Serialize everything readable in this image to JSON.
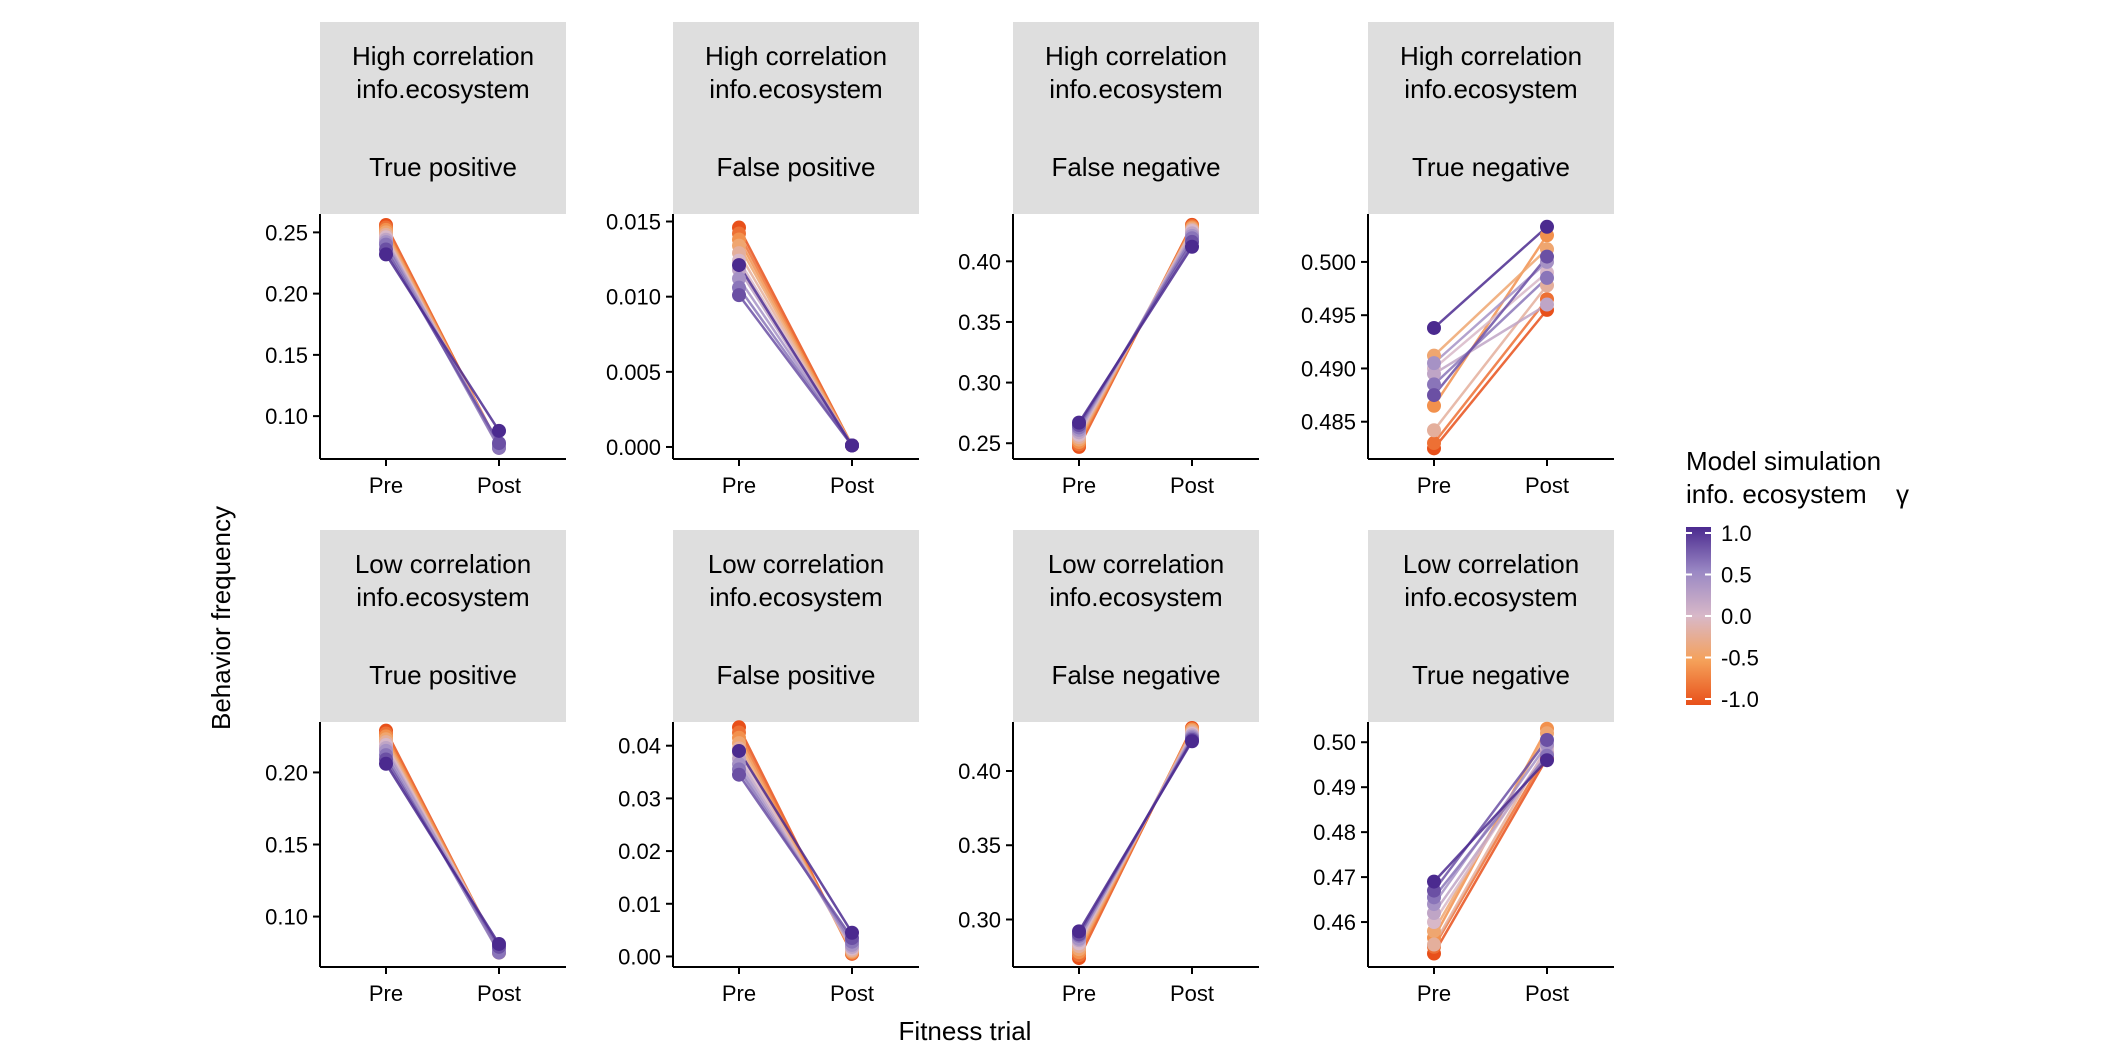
{
  "figure": {
    "ylabel": "Behavior frequency",
    "xlabel": "Fitness trial",
    "legend": {
      "title_line1": "Model simulation",
      "title_line2": "info. ecosystem",
      "title_symbol": "γ",
      "tick_labels": [
        "1.0",
        "0.5",
        "0.0",
        "-0.5",
        "-1.0"
      ],
      "placement": "right"
    }
  },
  "colors": {
    "gamma_low": "#e8501a",
    "gamma_midlow": "#f5a15a",
    "gamma_mid": "#d8b8c8",
    "gamma_midhigh": "#9a88c4",
    "gamma_high": "#4b2a8f",
    "strip_bg": "#dedede"
  },
  "chart_data": [
    {
      "type": "line",
      "strip": [
        "High correlation",
        "info.ecosystem",
        "True positive"
      ],
      "x": [
        "Pre",
        "Post"
      ],
      "ylim": [
        0.065,
        0.265
      ],
      "yticks": [
        0.1,
        0.15,
        0.2,
        0.25
      ],
      "ytick_labels": [
        "0.10",
        "0.15",
        "0.20",
        "0.25"
      ],
      "series": [
        {
          "gamma": -1.0,
          "values": [
            0.256,
            0.075
          ]
        },
        {
          "gamma": -0.8,
          "values": [
            0.254,
            0.076
          ]
        },
        {
          "gamma": -0.6,
          "values": [
            0.252,
            0.075
          ]
        },
        {
          "gamma": -0.4,
          "values": [
            0.25,
            0.076
          ]
        },
        {
          "gamma": -0.2,
          "values": [
            0.248,
            0.074
          ]
        },
        {
          "gamma": 0.0,
          "values": [
            0.246,
            0.076
          ]
        },
        {
          "gamma": 0.2,
          "values": [
            0.244,
            0.075
          ]
        },
        {
          "gamma": 0.4,
          "values": [
            0.242,
            0.077
          ]
        },
        {
          "gamma": 0.6,
          "values": [
            0.24,
            0.074
          ]
        },
        {
          "gamma": 0.8,
          "values": [
            0.236,
            0.078
          ]
        },
        {
          "gamma": 1.0,
          "values": [
            0.232,
            0.088
          ]
        }
      ]
    },
    {
      "type": "line",
      "strip": [
        "High correlation",
        "info.ecosystem",
        "False positive"
      ],
      "x": [
        "Pre",
        "Post"
      ],
      "ylim": [
        -0.0008,
        0.0155
      ],
      "yticks": [
        0.0,
        0.005,
        0.01,
        0.015
      ],
      "ytick_labels": [
        "0.000",
        "0.005",
        "0.010",
        "0.015"
      ],
      "series": [
        {
          "gamma": -1.0,
          "values": [
            0.0146,
            0.0001
          ]
        },
        {
          "gamma": -0.8,
          "values": [
            0.0142,
            0.0001
          ]
        },
        {
          "gamma": -0.6,
          "values": [
            0.0138,
            0.0001
          ]
        },
        {
          "gamma": -0.4,
          "values": [
            0.0134,
            0.0001
          ]
        },
        {
          "gamma": -0.2,
          "values": [
            0.0129,
            0.0001
          ]
        },
        {
          "gamma": 0.0,
          "values": [
            0.0124,
            0.0001
          ]
        },
        {
          "gamma": 0.2,
          "values": [
            0.0118,
            0.0001
          ]
        },
        {
          "gamma": 0.4,
          "values": [
            0.0112,
            0.0001
          ]
        },
        {
          "gamma": 0.6,
          "values": [
            0.0106,
            0.0001
          ]
        },
        {
          "gamma": 0.8,
          "values": [
            0.0101,
            0.0001
          ]
        },
        {
          "gamma": 1.0,
          "values": [
            0.0121,
            0.0001
          ]
        }
      ]
    },
    {
      "type": "line",
      "strip": [
        "High correlation",
        "info.ecosystem",
        "False negative"
      ],
      "x": [
        "Pre",
        "Post"
      ],
      "ylim": [
        0.237,
        0.439
      ],
      "yticks": [
        0.25,
        0.3,
        0.35,
        0.4
      ],
      "ytick_labels": [
        "0.25",
        "0.30",
        "0.35",
        "0.40"
      ],
      "series": [
        {
          "gamma": -1.0,
          "values": [
            0.247,
            0.43
          ]
        },
        {
          "gamma": -0.8,
          "values": [
            0.249,
            0.429
          ]
        },
        {
          "gamma": -0.6,
          "values": [
            0.251,
            0.428
          ]
        },
        {
          "gamma": -0.4,
          "values": [
            0.253,
            0.427
          ]
        },
        {
          "gamma": -0.2,
          "values": [
            0.255,
            0.426
          ]
        },
        {
          "gamma": 0.0,
          "values": [
            0.257,
            0.425
          ]
        },
        {
          "gamma": 0.2,
          "values": [
            0.259,
            0.423
          ]
        },
        {
          "gamma": 0.4,
          "values": [
            0.261,
            0.421
          ]
        },
        {
          "gamma": 0.6,
          "values": [
            0.263,
            0.419
          ]
        },
        {
          "gamma": 0.8,
          "values": [
            0.265,
            0.416
          ]
        },
        {
          "gamma": 1.0,
          "values": [
            0.267,
            0.412
          ]
        }
      ]
    },
    {
      "type": "line",
      "strip": [
        "High correlation",
        "info.ecosystem",
        "True negative"
      ],
      "x": [
        "Pre",
        "Post"
      ],
      "ylim": [
        0.4815,
        0.5045
      ],
      "yticks": [
        0.485,
        0.49,
        0.495,
        0.5
      ],
      "ytick_labels": [
        "0.485",
        "0.490",
        "0.495",
        "0.500"
      ],
      "series": [
        {
          "gamma": -1.0,
          "values": [
            0.4825,
            0.4955
          ]
        },
        {
          "gamma": -0.8,
          "values": [
            0.483,
            0.4965
          ]
        },
        {
          "gamma": -0.6,
          "values": [
            0.4865,
            0.5025
          ]
        },
        {
          "gamma": -0.4,
          "values": [
            0.4912,
            0.5012
          ]
        },
        {
          "gamma": -0.2,
          "values": [
            0.4842,
            0.4978
          ]
        },
        {
          "gamma": 0.0,
          "values": [
            0.49,
            0.499
          ]
        },
        {
          "gamma": 0.2,
          "values": [
            0.4895,
            0.496
          ]
        },
        {
          "gamma": 0.4,
          "values": [
            0.4905,
            0.5
          ]
        },
        {
          "gamma": 0.6,
          "values": [
            0.4885,
            0.4985
          ]
        },
        {
          "gamma": 0.8,
          "values": [
            0.4875,
            0.5005
          ]
        },
        {
          "gamma": 1.0,
          "values": [
            0.4938,
            0.5033
          ]
        }
      ]
    },
    {
      "type": "line",
      "strip": [
        "Low correlation",
        "info.ecosystem",
        "True positive"
      ],
      "x": [
        "Pre",
        "Post"
      ],
      "ylim": [
        0.065,
        0.235
      ],
      "yticks": [
        0.1,
        0.15,
        0.2
      ],
      "ytick_labels": [
        "0.10",
        "0.15",
        "0.20"
      ],
      "series": [
        {
          "gamma": -1.0,
          "values": [
            0.229,
            0.076
          ]
        },
        {
          "gamma": -0.8,
          "values": [
            0.227,
            0.075
          ]
        },
        {
          "gamma": -0.6,
          "values": [
            0.225,
            0.077
          ]
        },
        {
          "gamma": -0.4,
          "values": [
            0.223,
            0.076
          ]
        },
        {
          "gamma": -0.2,
          "values": [
            0.221,
            0.075
          ]
        },
        {
          "gamma": 0.0,
          "values": [
            0.219,
            0.078
          ]
        },
        {
          "gamma": 0.2,
          "values": [
            0.217,
            0.076
          ]
        },
        {
          "gamma": 0.4,
          "values": [
            0.215,
            0.077
          ]
        },
        {
          "gamma": 0.6,
          "values": [
            0.212,
            0.075
          ]
        },
        {
          "gamma": 0.8,
          "values": [
            0.209,
            0.079
          ]
        },
        {
          "gamma": 1.0,
          "values": [
            0.206,
            0.081
          ]
        }
      ]
    },
    {
      "type": "line",
      "strip": [
        "Low correlation",
        "info.ecosystem",
        "False positive"
      ],
      "x": [
        "Pre",
        "Post"
      ],
      "ylim": [
        -0.002,
        0.0445
      ],
      "yticks": [
        0.0,
        0.01,
        0.02,
        0.03,
        0.04
      ],
      "ytick_labels": [
        "0.00",
        "0.01",
        "0.02",
        "0.03",
        "0.04"
      ],
      "series": [
        {
          "gamma": -1.0,
          "values": [
            0.0435,
            0.0005
          ]
        },
        {
          "gamma": -0.8,
          "values": [
            0.0425,
            0.0006
          ]
        },
        {
          "gamma": -0.6,
          "values": [
            0.0415,
            0.0008
          ]
        },
        {
          "gamma": -0.4,
          "values": [
            0.0405,
            0.001
          ]
        },
        {
          "gamma": -0.2,
          "values": [
            0.0395,
            0.0012
          ]
        },
        {
          "gamma": 0.0,
          "values": [
            0.0385,
            0.0015
          ]
        },
        {
          "gamma": 0.2,
          "values": [
            0.0375,
            0.0018
          ]
        },
        {
          "gamma": 0.4,
          "values": [
            0.0365,
            0.0022
          ]
        },
        {
          "gamma": 0.6,
          "values": [
            0.0355,
            0.0028
          ]
        },
        {
          "gamma": 0.8,
          "values": [
            0.0345,
            0.0035
          ]
        },
        {
          "gamma": 1.0,
          "values": [
            0.039,
            0.0045
          ]
        }
      ]
    },
    {
      "type": "line",
      "strip": [
        "Low correlation",
        "info.ecosystem",
        "False negative"
      ],
      "x": [
        "Pre",
        "Post"
      ],
      "ylim": [
        0.268,
        0.433
      ],
      "yticks": [
        0.3,
        0.35,
        0.4
      ],
      "ytick_labels": [
        "0.30",
        "0.35",
        "0.40"
      ],
      "series": [
        {
          "gamma": -1.0,
          "values": [
            0.274,
            0.429
          ]
        },
        {
          "gamma": -0.8,
          "values": [
            0.276,
            0.428
          ]
        },
        {
          "gamma": -0.6,
          "values": [
            0.278,
            0.428
          ]
        },
        {
          "gamma": -0.4,
          "values": [
            0.28,
            0.427
          ]
        },
        {
          "gamma": -0.2,
          "values": [
            0.282,
            0.426
          ]
        },
        {
          "gamma": 0.0,
          "values": [
            0.284,
            0.425
          ]
        },
        {
          "gamma": 0.2,
          "values": [
            0.286,
            0.424
          ]
        },
        {
          "gamma": 0.4,
          "values": [
            0.287,
            0.423
          ]
        },
        {
          "gamma": 0.6,
          "values": [
            0.289,
            0.422
          ]
        },
        {
          "gamma": 0.8,
          "values": [
            0.29,
            0.421
          ]
        },
        {
          "gamma": 1.0,
          "values": [
            0.292,
            0.42
          ]
        }
      ]
    },
    {
      "type": "line",
      "strip": [
        "Low correlation",
        "info.ecosystem",
        "True negative"
      ],
      "x": [
        "Pre",
        "Post"
      ],
      "ylim": [
        0.45,
        0.5045
      ],
      "yticks": [
        0.46,
        0.47,
        0.48,
        0.49,
        0.5
      ],
      "ytick_labels": [
        "0.46",
        "0.47",
        "0.48",
        "0.49",
        "0.50"
      ],
      "series": [
        {
          "gamma": -1.0,
          "values": [
            0.453,
            0.4965
          ]
        },
        {
          "gamma": -0.8,
          "values": [
            0.4545,
            0.4975
          ]
        },
        {
          "gamma": -0.6,
          "values": [
            0.4565,
            0.503
          ]
        },
        {
          "gamma": -0.4,
          "values": [
            0.458,
            0.502
          ]
        },
        {
          "gamma": -0.2,
          "values": [
            0.455,
            0.499
          ]
        },
        {
          "gamma": 0.0,
          "values": [
            0.46,
            0.4985
          ]
        },
        {
          "gamma": 0.2,
          "values": [
            0.462,
            0.4975
          ]
        },
        {
          "gamma": 0.4,
          "values": [
            0.464,
            0.4995
          ]
        },
        {
          "gamma": 0.6,
          "values": [
            0.4655,
            0.497
          ]
        },
        {
          "gamma": 0.8,
          "values": [
            0.467,
            0.5005
          ]
        },
        {
          "gamma": 1.0,
          "values": [
            0.469,
            0.496
          ]
        }
      ]
    }
  ]
}
